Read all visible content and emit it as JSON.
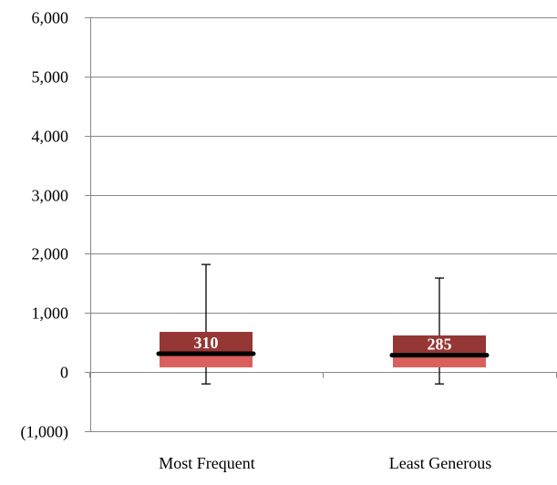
{
  "chart_data": {
    "type": "box",
    "title": "",
    "xlabel": "",
    "ylabel": "",
    "ylim": [
      -1000,
      6000
    ],
    "yticks": [
      6000,
      5000,
      4000,
      3000,
      2000,
      1000,
      0,
      -1000
    ],
    "ytick_labels": [
      "6,000",
      "5,000",
      "4,000",
      "3,000",
      "2,000",
      "1,000",
      "0",
      "(1,000)"
    ],
    "grid": true,
    "legend": "none",
    "categories": [
      "Most Frequent",
      "Least Generous"
    ],
    "boxes": [
      {
        "category": "Most Frequent",
        "min": -200,
        "q1": 80,
        "median": 310,
        "q3": 680,
        "max": 1820,
        "median_label": "310"
      },
      {
        "category": "Least Generous",
        "min": -200,
        "q1": 80,
        "median": 285,
        "q3": 620,
        "max": 1590,
        "median_label": "285"
      }
    ],
    "colors": {
      "upper_box": "#953735",
      "lower_box": "#d9605c",
      "median_line": "#000000",
      "whisker": "#000000",
      "axis": "#888888",
      "grid": "#888888"
    }
  }
}
